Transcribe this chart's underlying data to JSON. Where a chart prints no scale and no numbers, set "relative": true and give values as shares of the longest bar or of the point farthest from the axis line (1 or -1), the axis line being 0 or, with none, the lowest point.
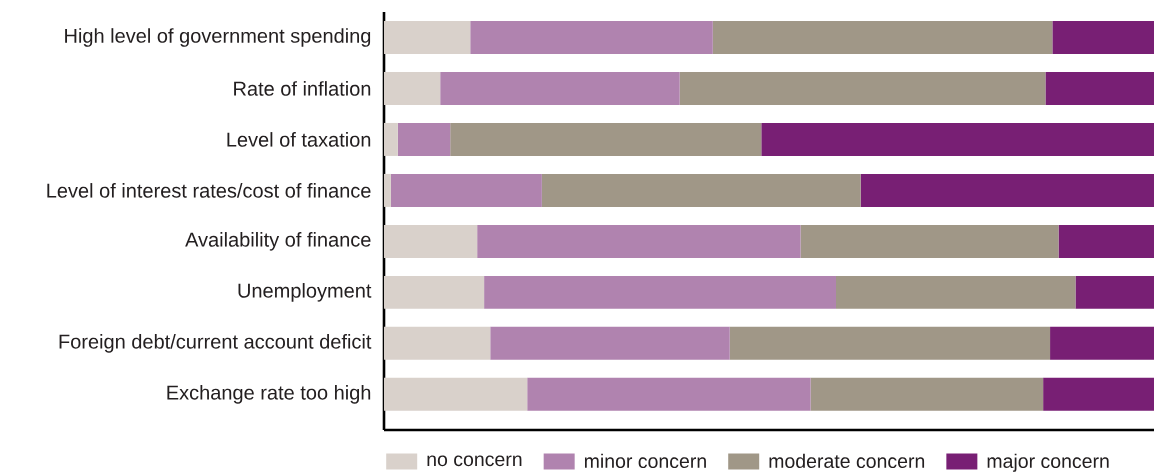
{
  "chart_data": {
    "type": "bar",
    "orientation": "horizontal",
    "stacked": true,
    "relative": true,
    "legend": "bottom",
    "categories": [
      "High level of government spending",
      "Rate of inflation",
      "Level of taxation",
      "Level of interest rates/cost of finance",
      "Availability of finance",
      "Unemployment",
      "Foreign debt/current account deficit",
      "Exchange rate too high"
    ],
    "series": [
      {
        "name": "no concern",
        "color": "#d9d1cb",
        "values": [
          0.112,
          0.073,
          0.018,
          0.009,
          0.121,
          0.13,
          0.138,
          0.186
        ]
      },
      {
        "name": "minor concern",
        "color": "#b083af",
        "values": [
          0.315,
          0.311,
          0.068,
          0.196,
          0.42,
          0.457,
          0.311,
          0.368
        ]
      },
      {
        "name": "moderate concern",
        "color": "#a09787",
        "values": [
          0.441,
          0.475,
          0.404,
          0.414,
          0.335,
          0.311,
          0.416,
          0.302
        ]
      },
      {
        "name": "major concern",
        "color": "#781f74",
        "values": [
          0.132,
          0.141,
          0.51,
          0.381,
          0.124,
          0.102,
          0.135,
          0.144
        ]
      }
    ]
  }
}
